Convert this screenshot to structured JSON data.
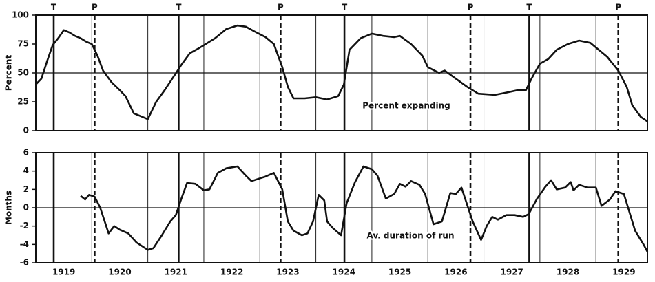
{
  "chart_data": [
    {
      "type": "line",
      "ylabel": "Percent",
      "annotation": "Percent expanding",
      "color": "#111",
      "xlim": [
        1919,
        1929.92
      ],
      "ylim": [
        0,
        100
      ],
      "yticks": [
        0,
        25,
        50,
        75,
        100
      ],
      "hline": 50,
      "turning_points": [
        {
          "label": "T",
          "x": 1919.32
        },
        {
          "label": "P",
          "x": 1920.05
        },
        {
          "label": "T",
          "x": 1921.55
        },
        {
          "label": "P",
          "x": 1923.37
        },
        {
          "label": "T",
          "x": 1924.51
        },
        {
          "label": "P",
          "x": 1926.76
        },
        {
          "label": "T",
          "x": 1927.81
        },
        {
          "label": "P",
          "x": 1929.4
        }
      ],
      "x": [
        1919.0,
        1919.1,
        1919.2,
        1919.3,
        1919.4,
        1919.5,
        1919.6,
        1919.7,
        1919.8,
        1919.9,
        1920.0,
        1920.1,
        1920.2,
        1920.35,
        1920.5,
        1920.6,
        1920.75,
        1920.9,
        1921.0,
        1921.15,
        1921.3,
        1921.45,
        1921.6,
        1921.75,
        1921.9,
        1922.0,
        1922.2,
        1922.4,
        1922.6,
        1922.75,
        1922.9,
        1923.1,
        1923.25,
        1923.4,
        1923.5,
        1923.6,
        1923.8,
        1924.0,
        1924.2,
        1924.4,
        1924.5,
        1924.6,
        1924.8,
        1925.0,
        1925.2,
        1925.4,
        1925.5,
        1925.7,
        1925.9,
        1926.0,
        1926.2,
        1926.3,
        1926.5,
        1926.7,
        1926.9,
        1927.2,
        1927.4,
        1927.6,
        1927.75,
        1927.85,
        1928.0,
        1928.15,
        1928.3,
        1928.5,
        1928.7,
        1928.9,
        1929.0,
        1929.2,
        1929.4,
        1929.55,
        1929.65,
        1929.8,
        1929.92
      ],
      "values": [
        40,
        45,
        60,
        74,
        80,
        87,
        85,
        82,
        80,
        77,
        75,
        65,
        52,
        42,
        35,
        30,
        15,
        12,
        10,
        25,
        35,
        46,
        57,
        67,
        71,
        74,
        80,
        88,
        91,
        90,
        86,
        81,
        75,
        55,
        38,
        28,
        28,
        29,
        27,
        30,
        40,
        70,
        80,
        84,
        82,
        81,
        82,
        75,
        65,
        55,
        50,
        52,
        45,
        38,
        32,
        31,
        33,
        35,
        35,
        45,
        58,
        62,
        70,
        75,
        78,
        76,
        72,
        64,
        52,
        38,
        22,
        12,
        8
      ]
    },
    {
      "type": "line",
      "ylabel": "Months",
      "annotation": "Av. duration of run",
      "color": "#111",
      "xlim": [
        1919,
        1929.92
      ],
      "ylim": [
        -6,
        6
      ],
      "yticks": [
        -6,
        -4,
        -2,
        0,
        2,
        4,
        6
      ],
      "hline": 0,
      "years": [
        1919,
        1920,
        1921,
        1922,
        1923,
        1924,
        1925,
        1926,
        1927,
        1928,
        1929
      ],
      "x": [
        1919.8,
        1919.88,
        1919.95,
        1920.05,
        1920.15,
        1920.3,
        1920.4,
        1920.5,
        1920.65,
        1920.8,
        1921.0,
        1921.1,
        1921.25,
        1921.4,
        1921.5,
        1921.6,
        1921.7,
        1921.85,
        1922.0,
        1922.1,
        1922.25,
        1922.4,
        1922.6,
        1922.75,
        1922.85,
        1923.0,
        1923.1,
        1923.25,
        1923.4,
        1923.5,
        1923.6,
        1923.75,
        1923.85,
        1923.95,
        1924.05,
        1924.15,
        1924.2,
        1924.3,
        1924.45,
        1924.55,
        1924.7,
        1924.85,
        1925.0,
        1925.1,
        1925.25,
        1925.4,
        1925.5,
        1925.6,
        1925.7,
        1925.85,
        1925.95,
        1926.1,
        1926.25,
        1926.4,
        1926.5,
        1926.6,
        1926.8,
        1926.95,
        1927.05,
        1927.15,
        1927.25,
        1927.4,
        1927.55,
        1927.7,
        1927.8,
        1927.95,
        1928.1,
        1928.2,
        1928.3,
        1928.45,
        1928.55,
        1928.6,
        1928.7,
        1928.85,
        1929.0,
        1929.1,
        1929.25,
        1929.35,
        1929.5,
        1929.6,
        1929.7,
        1929.85,
        1929.92
      ],
      "values": [
        1.3,
        0.9,
        1.4,
        1.2,
        0,
        -2.8,
        -2.0,
        -2.4,
        -2.8,
        -3.8,
        -4.6,
        -4.4,
        -3.0,
        -1.5,
        -0.8,
        1,
        2.7,
        2.6,
        1.9,
        2.0,
        3.8,
        4.3,
        4.5,
        3.5,
        2.9,
        3.2,
        3.4,
        3.8,
        2,
        -1.5,
        -2.5,
        -3.0,
        -2.8,
        -1.5,
        1.4,
        0.8,
        -1.5,
        -2.2,
        -3.0,
        0.5,
        2.8,
        4.5,
        4.2,
        3.5,
        1,
        1.5,
        2.6,
        2.3,
        2.9,
        2.5,
        1.5,
        -1.8,
        -1.5,
        1.6,
        1.5,
        2.2,
        -1.5,
        -3.5,
        -2,
        -1,
        -1.3,
        -0.8,
        -0.8,
        -1,
        -0.7,
        1.0,
        2.3,
        3,
        2,
        2.2,
        2.8,
        1.9,
        2.5,
        2.2,
        2.2,
        0.2,
        0.9,
        1.8,
        1.5,
        -0.5,
        -2.5,
        -4,
        -4.8
      ]
    }
  ]
}
